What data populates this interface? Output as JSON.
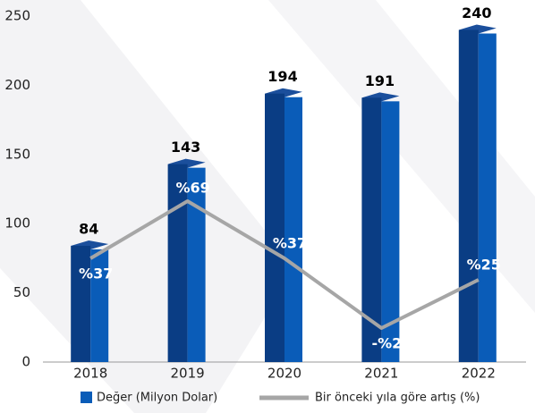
{
  "chart_data": {
    "type": "bar",
    "categories": [
      "2018",
      "2019",
      "2020",
      "2021",
      "2022"
    ],
    "series": [
      {
        "name": "Değer (Milyon Dolar)",
        "type": "bar",
        "color": "#0a5cb8",
        "values": [
          84,
          143,
          194,
          191,
          240
        ]
      },
      {
        "name": "Bir önceki yıla göre artış (%)",
        "type": "line",
        "axis": "y2",
        "color": "#a6a6a6",
        "values": [
          37,
          69,
          37,
          -2,
          25
        ],
        "value_labels": [
          "%37",
          "%69",
          "%37",
          "-%2",
          "%25"
        ]
      }
    ],
    "ylim": [
      0,
      250
    ],
    "yticks": [
      0,
      50,
      100,
      150,
      200,
      250
    ],
    "y2lim": [
      -21,
      172.5
    ],
    "legend": "bottom"
  }
}
